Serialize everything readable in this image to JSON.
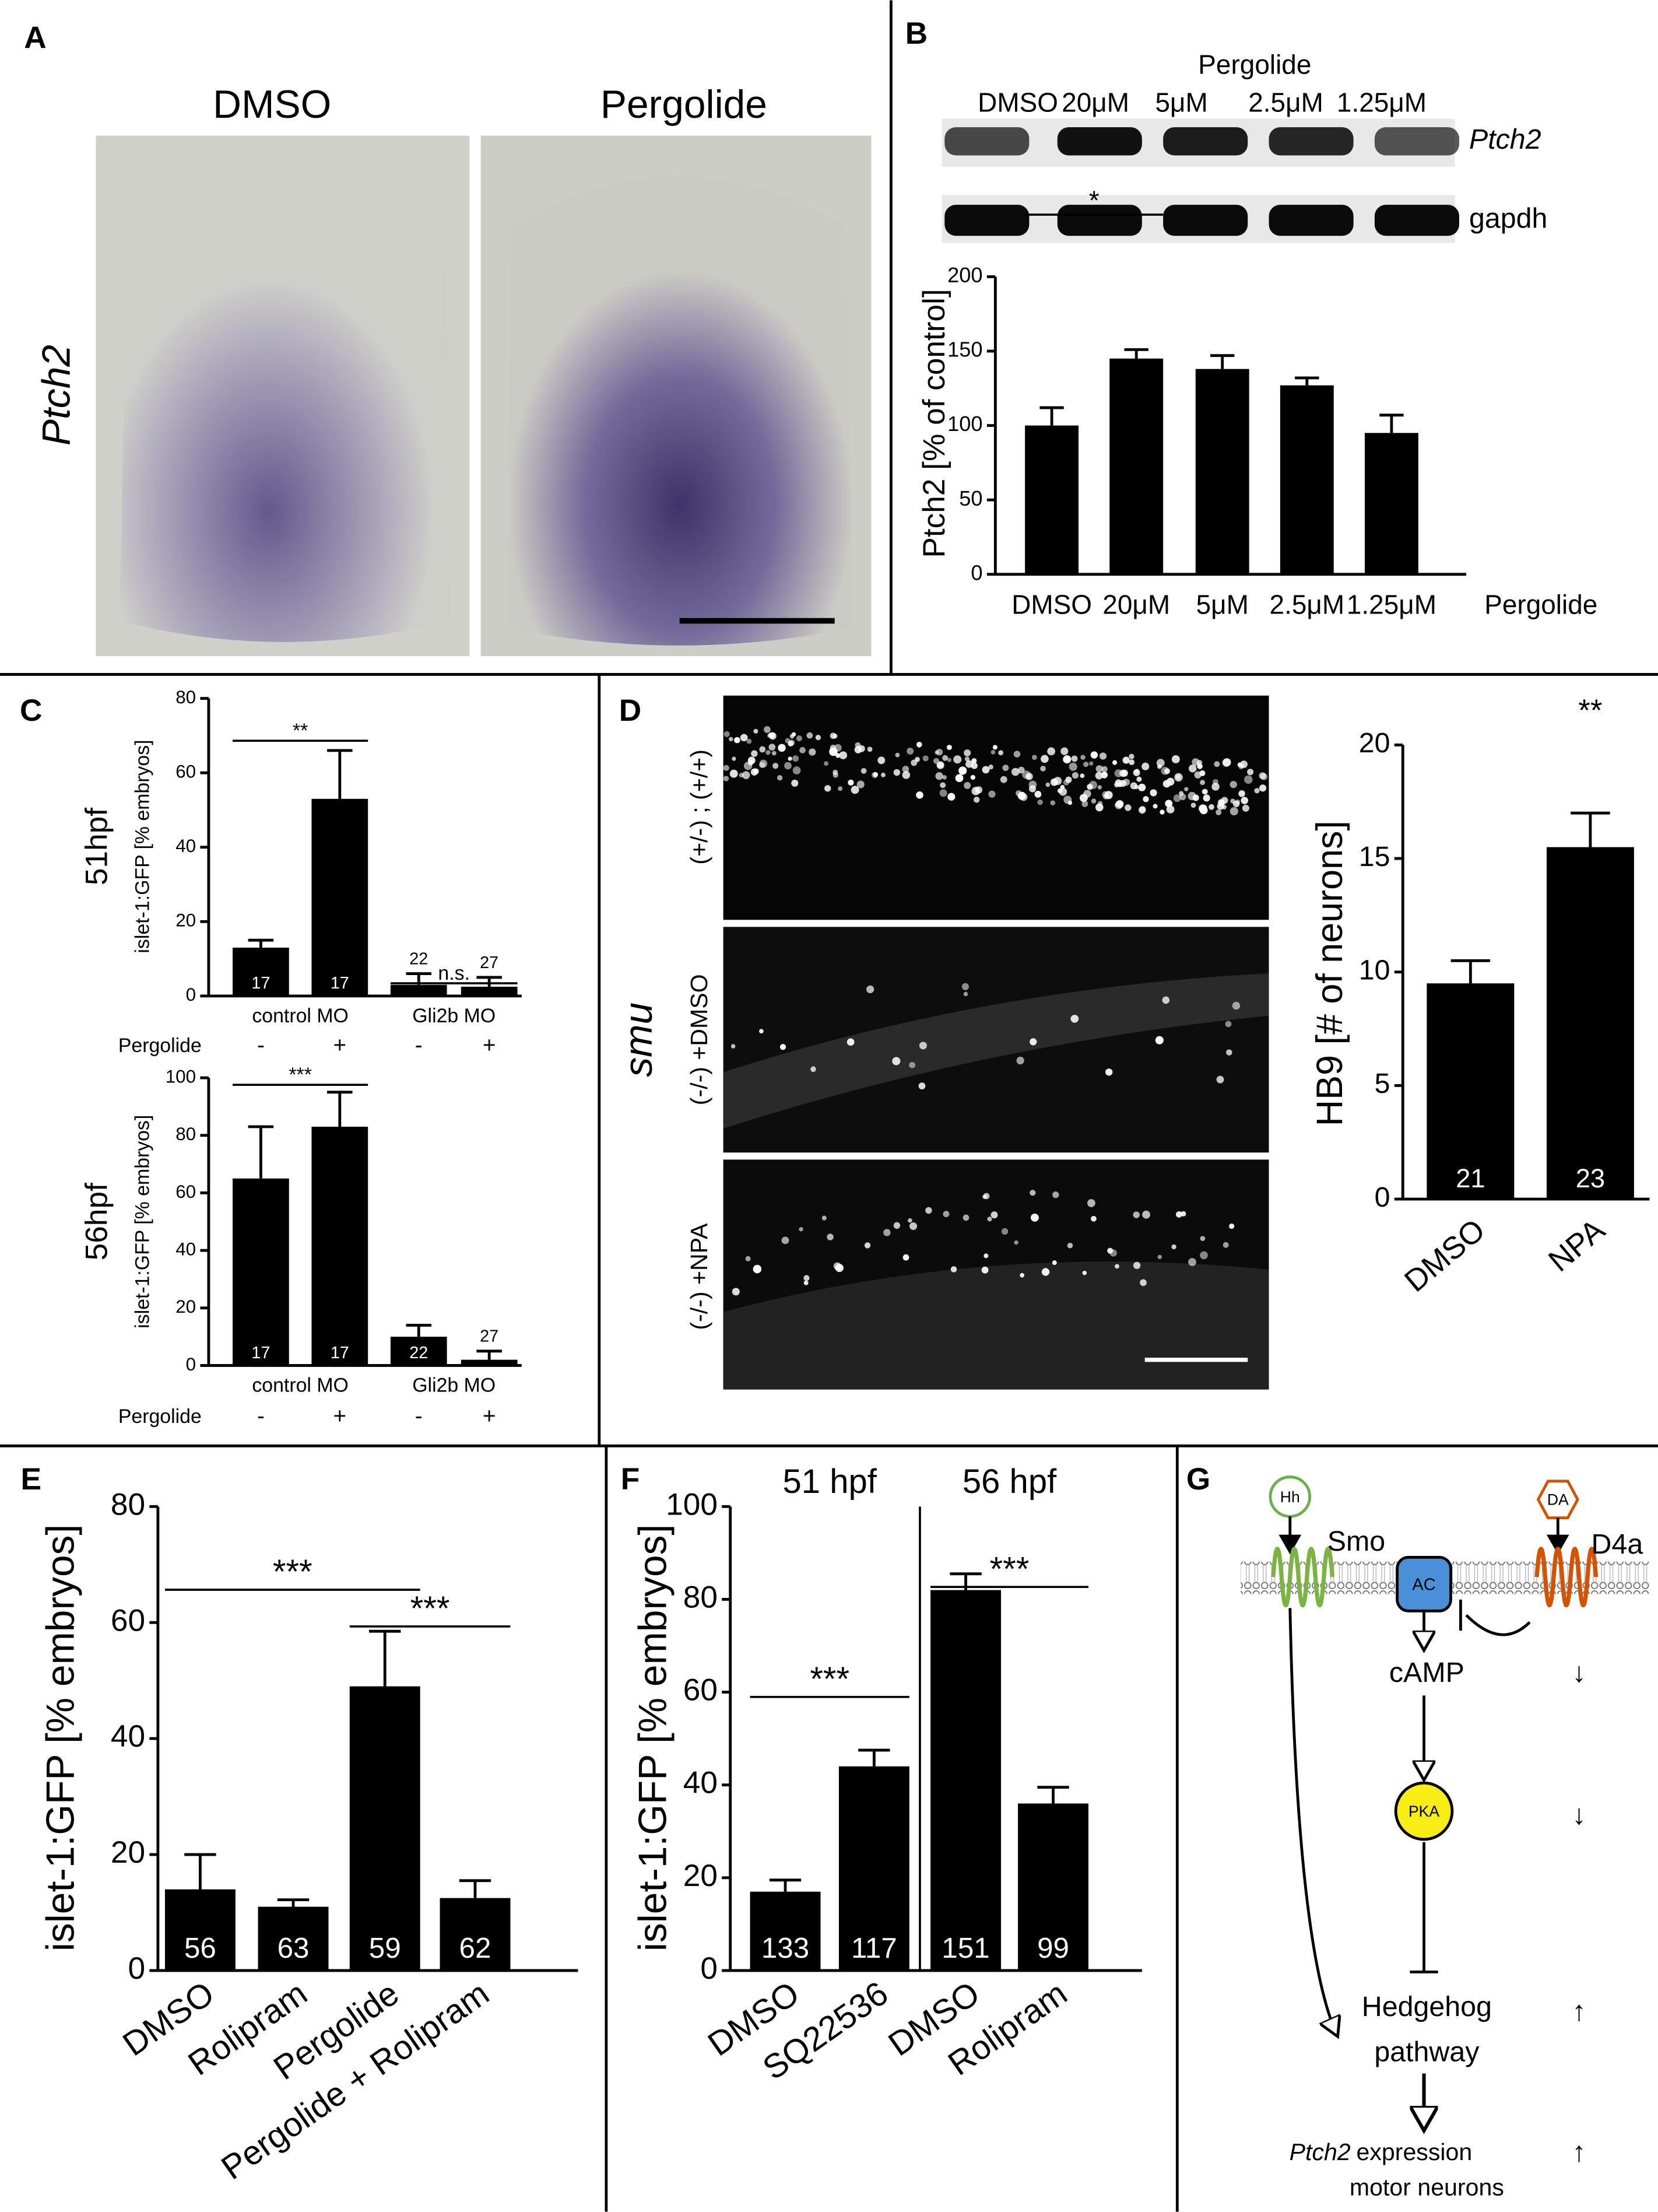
{
  "figure": {
    "panel_labels": [
      "A",
      "B",
      "C",
      "D",
      "E",
      "F",
      "G"
    ]
  },
  "panel_a": {
    "columns": [
      "DMSO",
      "Pergolide"
    ],
    "row_label": "Ptch2"
  },
  "panel_b_blot": {
    "treatment": "Pergolide",
    "lanes": [
      "DMSO",
      "20μM",
      "5μM",
      "2.5μM",
      "1.25μM"
    ],
    "rows": [
      "Ptch2",
      "gapdh"
    ]
  },
  "panel_d_images": {
    "genotype": "smu",
    "rows": [
      "(+/-) ; (+/+)",
      "(-/-) +DMSO",
      "(-/-) +NPA"
    ]
  },
  "diagram": {
    "nodes": {
      "hh": "Hh",
      "da": "DA",
      "smo": "Smo",
      "d4a": "D4a",
      "ac": "AC",
      "camp": "cAMP",
      "pka": "PKA",
      "hedgehog": "Hedgehog",
      "pathway": "pathway",
      "ptch2": "Ptch2",
      "expression": "expression",
      "motor_neurons": "motor neurons"
    },
    "arrows": [
      "↓",
      "↓",
      "↑",
      "↑"
    ]
  },
  "chart_data": [
    {
      "type": "bar",
      "ylabel": "Ptch2 [% of control]",
      "xlabel": "Pergolide",
      "categories": [
        "DMSO",
        "20μM",
        "5μM",
        "2.5μM",
        "1.25μM"
      ],
      "values": [
        100,
        145,
        138,
        127,
        95
      ],
      "errors": [
        12,
        6,
        9,
        5,
        12
      ],
      "significance": [
        {
          "bars": [
            0,
            1
          ],
          "label": "*"
        }
      ],
      "ylim": [
        0,
        200
      ],
      "yticks": [
        0,
        50,
        100,
        150,
        200
      ],
      "color": "#000000"
    },
    {
      "type": "bar",
      "title": "51hpf",
      "ylabel": "islet-1:GFP [% embryos]",
      "groups": [
        "control MO",
        "Gli2b MO"
      ],
      "treatment_label": "Pergolide",
      "treatment": [
        "-",
        "+",
        "-",
        "+"
      ],
      "values": [
        13,
        53,
        3,
        2.5
      ],
      "errors": [
        2,
        13,
        3,
        2.5
      ],
      "n": [
        17,
        17,
        22,
        27
      ],
      "significance": [
        {
          "bars": [
            0,
            1
          ],
          "label": "**"
        },
        {
          "bars": [
            2,
            3
          ],
          "label": "n.s."
        }
      ],
      "ylim": [
        0,
        80
      ],
      "yticks": [
        0,
        20,
        40,
        60,
        80
      ],
      "color": "#000000"
    },
    {
      "type": "bar",
      "title": "56hpf",
      "ylabel": "islet-1:GFP [% embryos]",
      "groups": [
        "control MO",
        "Gli2b MO"
      ],
      "treatment_label": "Pergolide",
      "treatment": [
        "-",
        "+",
        "-",
        "+"
      ],
      "values": [
        65,
        83,
        10,
        2
      ],
      "errors": [
        18,
        12,
        4,
        3
      ],
      "n": [
        17,
        17,
        22,
        27
      ],
      "significance": [
        {
          "bars": [
            0,
            1
          ],
          "label": "***"
        }
      ],
      "ylim": [
        0,
        100
      ],
      "yticks": [
        0,
        20,
        40,
        60,
        80,
        100
      ],
      "color": "#000000"
    },
    {
      "type": "bar",
      "ylabel": "HB9 [# of neurons]",
      "categories": [
        "DMSO",
        "NPA"
      ],
      "values": [
        9.5,
        15.5
      ],
      "errors": [
        1,
        1.5
      ],
      "n": [
        21,
        23
      ],
      "significance": [
        {
          "bars": [
            1
          ],
          "label": "**"
        }
      ],
      "ylim": [
        0,
        20
      ],
      "yticks": [
        0,
        5,
        10,
        15,
        20
      ],
      "color": "#000000"
    },
    {
      "type": "bar",
      "ylabel": "islet-1:GFP [% embryos]",
      "categories": [
        "DMSO",
        "Rolipram",
        "Pergolide",
        "Pergolide + Rolipram"
      ],
      "values": [
        14,
        11,
        49,
        12.5
      ],
      "errors": [
        6,
        1.2,
        9.5,
        3
      ],
      "n": [
        56,
        63,
        59,
        62
      ],
      "significance": [
        {
          "bars": [
            0,
            2
          ],
          "label": "***"
        },
        {
          "bars": [
            2,
            3
          ],
          "label": "***"
        }
      ],
      "ylim": [
        0,
        80
      ],
      "yticks": [
        0,
        20,
        40,
        60,
        80
      ],
      "color": "#000000"
    },
    {
      "type": "bar",
      "ylabel": "islet-1:GFP [% embryos]",
      "groups": [
        "51 hpf",
        "56 hpf"
      ],
      "categories": [
        "DMSO",
        "SQ22536",
        "DMSO",
        "Rolipram"
      ],
      "values": [
        17,
        44,
        82,
        36
      ],
      "errors": [
        2.5,
        3.5,
        3.5,
        3.5
      ],
      "n": [
        133,
        117,
        151,
        99
      ],
      "significance": [
        {
          "bars": [
            0,
            1
          ],
          "label": "***"
        },
        {
          "bars": [
            2,
            3
          ],
          "label": "***"
        }
      ],
      "ylim": [
        0,
        100
      ],
      "yticks": [
        0,
        20,
        40,
        60,
        80,
        100
      ],
      "color": "#000000"
    }
  ]
}
